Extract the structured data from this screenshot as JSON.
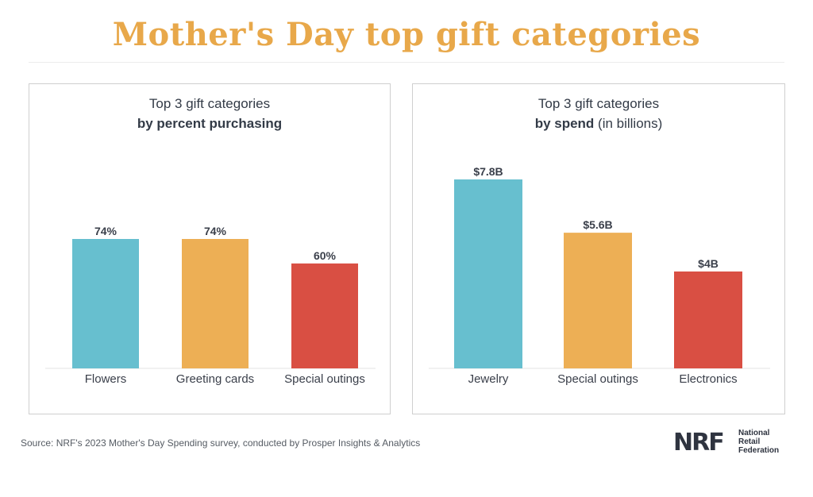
{
  "title": "Mother's Day top gift categories",
  "source": "Source: NRF's 2023 Mother's Day Spending survey, conducted by Prosper Insights & Analytics",
  "logo": {
    "mark": "NRF",
    "line1": "National",
    "line2": "Retail",
    "line3": "Federation"
  },
  "panels": [
    {
      "title_line1": "Top 3 gift categories",
      "title_bold": "by percent purchasing",
      "title_suffix": ""
    },
    {
      "title_line1": "Top 3 gift categories",
      "title_bold": "by spend",
      "title_suffix": " (in billions)"
    }
  ],
  "chart_data": [
    {
      "type": "bar",
      "title": "Top 3 gift categories by percent purchasing",
      "categories": [
        "Flowers",
        "Greeting cards",
        "Special outings"
      ],
      "values": [
        74,
        74,
        60
      ],
      "labels": [
        "74%",
        "74%",
        "60%"
      ],
      "colors": [
        "#67bfcf",
        "#edaf55",
        "#d94f43"
      ],
      "ylim": [
        0,
        100
      ],
      "grid": false
    },
    {
      "type": "bar",
      "title": "Top 3 gift categories by spend (in billions)",
      "categories": [
        "Jewelry",
        "Special outings",
        "Electronics"
      ],
      "values": [
        7.8,
        5.6,
        4
      ],
      "labels": [
        "$7.8B",
        "$5.6B",
        "$4B"
      ],
      "colors": [
        "#67bfcf",
        "#edaf55",
        "#d94f43"
      ],
      "ylim": [
        0,
        10
      ],
      "grid": false
    }
  ]
}
